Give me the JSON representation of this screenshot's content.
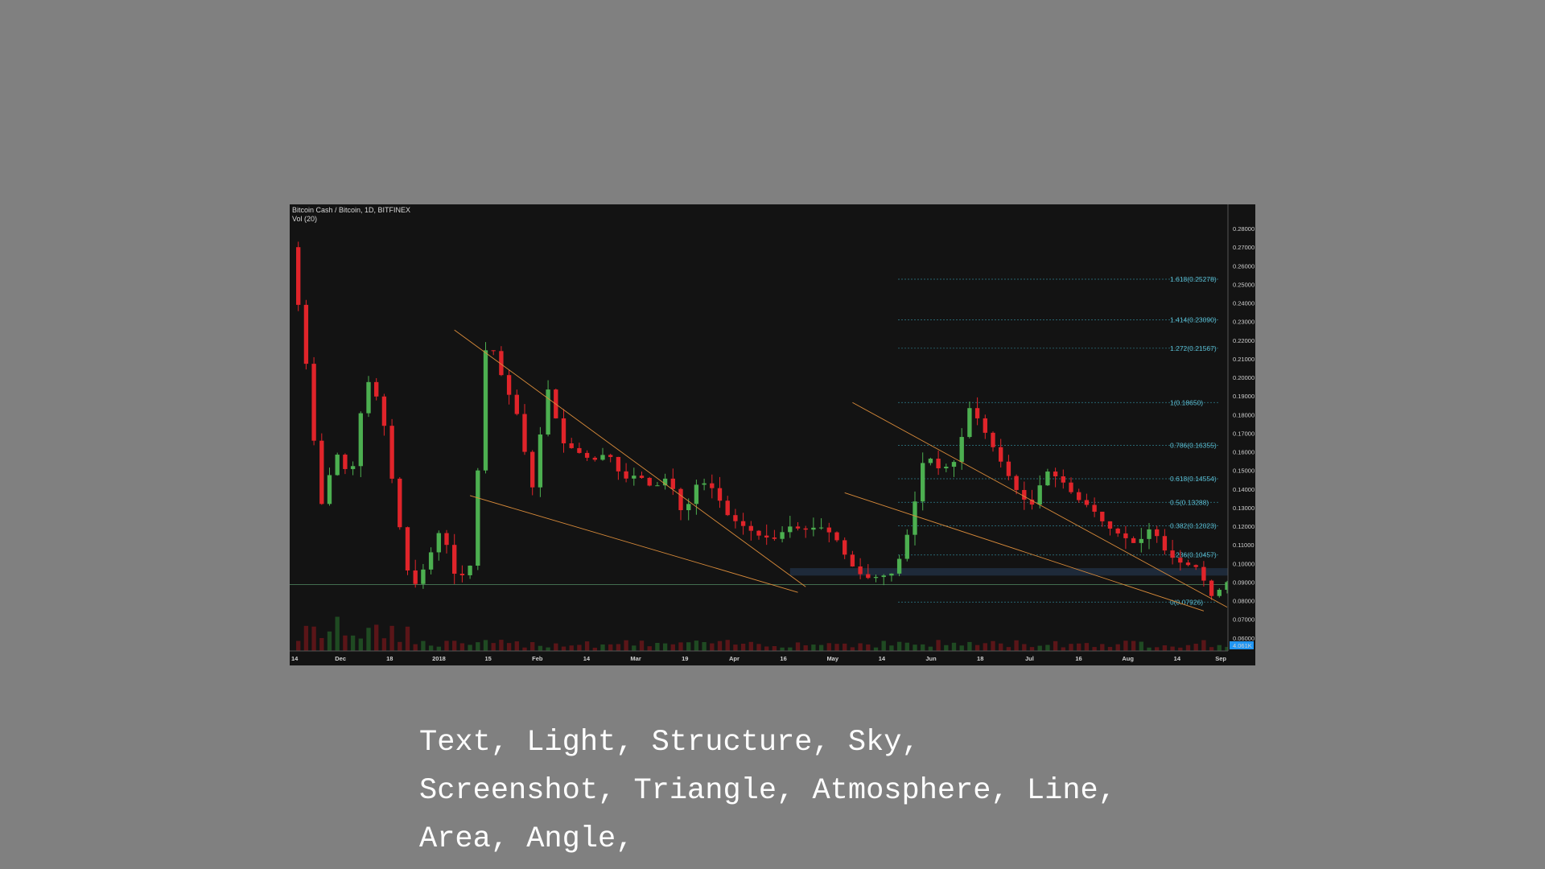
{
  "chart_data": {
    "type": "candlestick",
    "title": "Bitcoin Cash / Bitcoin, 1D, BITFINEX",
    "subtitle": "Vol (20)",
    "x_ticks": [
      "14",
      "Dec",
      "18",
      "2018",
      "15",
      "Feb",
      "14",
      "Mar",
      "19",
      "Apr",
      "16",
      "May",
      "14",
      "Jun",
      "18",
      "Jul",
      "16",
      "Aug",
      "14",
      "Sep"
    ],
    "y_ticks": [
      "0.28000",
      "0.27000",
      "0.26000",
      "0.25000",
      "0.24000",
      "0.23000",
      "0.22000",
      "0.21000",
      "0.20000",
      "0.19000",
      "0.18000",
      "0.17000",
      "0.16000",
      "0.15000",
      "0.14000",
      "0.13000",
      "0.12000",
      "0.11000",
      "0.10000",
      "0.09000",
      "0.08000",
      "0.07000",
      "0.06000"
    ],
    "ylim": [
      0.053,
      0.293
    ],
    "volume_badge": "4.061K",
    "fib_levels": [
      {
        "label": "1.618(0.25278)",
        "value": 0.25278
      },
      {
        "label": "1.414(0.23090)",
        "value": 0.2309
      },
      {
        "label": "1.272(0.21567)",
        "value": 0.21567
      },
      {
        "label": "1(0.18650)",
        "value": 0.1865
      },
      {
        "label": "0.786(0.16355)",
        "value": 0.16355
      },
      {
        "label": "0.618(0.14554)",
        "value": 0.14554
      },
      {
        "label": "0.5(0.13288)",
        "value": 0.13288
      },
      {
        "label": "0.382(0.12023)",
        "value": 0.12023
      },
      {
        "label": "0.236(0.10457)",
        "value": 0.10457
      },
      {
        "label": "0(0.07926)",
        "value": 0.07926
      }
    ],
    "horizontal_line": 0.0887,
    "support_zone": [
      0.0935,
      0.0975
    ],
    "wedge_lines": [
      [
        [
          21,
          0.2255
        ],
        [
          66,
          0.0875
        ]
      ],
      [
        [
          23,
          0.1365
        ],
        [
          65,
          0.0845
        ]
      ],
      [
        [
          72,
          0.1865
        ],
        [
          120,
          0.0765
        ]
      ],
      [
        [
          71,
          0.138
        ],
        [
          117,
          0.0745
        ]
      ]
    ],
    "price_path": [
      [
        0,
        0.27
      ],
      [
        1,
        0.21
      ],
      [
        2,
        0.13
      ],
      [
        3,
        0.16
      ],
      [
        4,
        0.145
      ],
      [
        5,
        0.2
      ],
      [
        6,
        0.185
      ],
      [
        7,
        0.13
      ],
      [
        8,
        0.085
      ],
      [
        9,
        0.1
      ],
      [
        10,
        0.12
      ],
      [
        11,
        0.09
      ],
      [
        12,
        0.1
      ],
      [
        13,
        0.225
      ],
      [
        14,
        0.2
      ],
      [
        15,
        0.18
      ],
      [
        16,
        0.14
      ],
      [
        17,
        0.195
      ],
      [
        18,
        0.165
      ],
      [
        19,
        0.16
      ],
      [
        20,
        0.155
      ],
      [
        21,
        0.16
      ],
      [
        22,
        0.145
      ],
      [
        23,
        0.148
      ],
      [
        24,
        0.14
      ],
      [
        25,
        0.147
      ],
      [
        26,
        0.125
      ],
      [
        27,
        0.145
      ],
      [
        28,
        0.14
      ],
      [
        29,
        0.125
      ],
      [
        30,
        0.12
      ],
      [
        31,
        0.115
      ],
      [
        32,
        0.113
      ],
      [
        33,
        0.12
      ],
      [
        34,
        0.118
      ],
      [
        35,
        0.12
      ],
      [
        36,
        0.115
      ],
      [
        37,
        0.1
      ],
      [
        38,
        0.092
      ],
      [
        39,
        0.093
      ],
      [
        40,
        0.095
      ],
      [
        41,
        0.12
      ],
      [
        42,
        0.16
      ],
      [
        43,
        0.15
      ],
      [
        44,
        0.155
      ],
      [
        45,
        0.185
      ],
      [
        46,
        0.17
      ],
      [
        47,
        0.155
      ],
      [
        48,
        0.14
      ],
      [
        49,
        0.13
      ],
      [
        50,
        0.15
      ],
      [
        51,
        0.145
      ],
      [
        52,
        0.135
      ],
      [
        53,
        0.13
      ],
      [
        54,
        0.12
      ],
      [
        55,
        0.115
      ],
      [
        56,
        0.11
      ],
      [
        57,
        0.12
      ],
      [
        58,
        0.105
      ],
      [
        59,
        0.1
      ],
      [
        60,
        0.098
      ],
      [
        61,
        0.082
      ],
      [
        62,
        0.09
      ]
    ]
  },
  "caption": {
    "lines": [
      "Text, Light, Structure, Sky,",
      "Screenshot, Triangle, Atmosphere, Line,",
      "Area, Angle,"
    ]
  }
}
